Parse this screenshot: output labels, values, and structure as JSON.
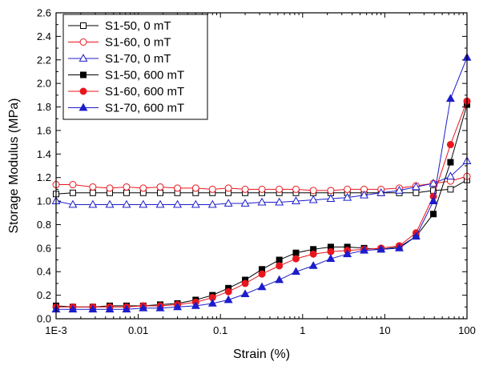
{
  "chart_data": {
    "type": "line",
    "xlabel": "Strain (%)",
    "ylabel": "Storage Modulus (MPa)",
    "xscale": "log",
    "xlim": [
      0.001,
      100
    ],
    "ylim": [
      0,
      2.6
    ],
    "x_ticks": [
      {
        "value": 0.001,
        "label": "1E-3"
      },
      {
        "value": 0.01,
        "label": "0.01"
      },
      {
        "value": 0.1,
        "label": "0.1"
      },
      {
        "value": 1,
        "label": "1"
      },
      {
        "value": 10,
        "label": "10"
      },
      {
        "value": 100,
        "label": "100"
      }
    ],
    "y_ticks": [
      "0.0",
      "0.2",
      "0.4",
      "0.6",
      "0.8",
      "1.0",
      "1.2",
      "1.4",
      "1.6",
      "1.8",
      "2.0",
      "2.2",
      "2.4",
      "2.6"
    ],
    "grid": false,
    "legend_position": "top-left",
    "x": [
      0.001,
      0.0016,
      0.0028,
      0.0045,
      0.0072,
      0.0115,
      0.0185,
      0.03,
      0.05,
      0.08,
      0.125,
      0.2,
      0.32,
      0.52,
      0.83,
      1.35,
      2.2,
      3.5,
      5.6,
      9,
      15,
      24,
      39,
      63,
      100
    ],
    "series": [
      {
        "name": "S1-50, 0 mT",
        "color": "#000000",
        "marker": "square",
        "filled": false,
        "values": [
          1.06,
          1.07,
          1.07,
          1.07,
          1.07,
          1.07,
          1.07,
          1.07,
          1.07,
          1.07,
          1.07,
          1.07,
          1.07,
          1.07,
          1.07,
          1.07,
          1.07,
          1.07,
          1.07,
          1.07,
          1.07,
          1.07,
          1.09,
          1.1,
          1.18
        ]
      },
      {
        "name": "S1-60, 0 mT",
        "color": "#e8161c",
        "marker": "circle",
        "filled": false,
        "values": [
          1.14,
          1.14,
          1.12,
          1.11,
          1.12,
          1.11,
          1.12,
          1.11,
          1.11,
          1.1,
          1.11,
          1.1,
          1.1,
          1.1,
          1.1,
          1.09,
          1.09,
          1.1,
          1.1,
          1.1,
          1.11,
          1.13,
          1.15,
          1.17,
          1.21
        ]
      },
      {
        "name": "S1-70, 0 mT",
        "color": "#1c1ccc",
        "marker": "triangle",
        "filled": false,
        "values": [
          1.0,
          0.97,
          0.97,
          0.97,
          0.97,
          0.97,
          0.97,
          0.97,
          0.97,
          0.97,
          0.98,
          0.98,
          0.99,
          0.99,
          1.0,
          1.01,
          1.02,
          1.03,
          1.05,
          1.07,
          1.09,
          1.12,
          1.15,
          1.21,
          1.34
        ]
      },
      {
        "name": "S1-50, 600 mT",
        "color": "#000000",
        "marker": "square",
        "filled": true,
        "values": [
          0.11,
          0.1,
          0.1,
          0.11,
          0.11,
          0.11,
          0.12,
          0.13,
          0.16,
          0.2,
          0.26,
          0.33,
          0.42,
          0.5,
          0.56,
          0.59,
          0.61,
          0.61,
          0.6,
          0.59,
          0.61,
          0.7,
          0.89,
          1.33,
          1.82
        ]
      },
      {
        "name": "S1-60, 600 mT",
        "color": "#e8161c",
        "marker": "circle",
        "filled": true,
        "values": [
          0.1,
          0.1,
          0.1,
          0.1,
          0.1,
          0.11,
          0.11,
          0.12,
          0.14,
          0.18,
          0.23,
          0.3,
          0.38,
          0.45,
          0.51,
          0.55,
          0.57,
          0.58,
          0.59,
          0.6,
          0.62,
          0.73,
          1.04,
          1.48,
          1.85
        ]
      },
      {
        "name": "S1-70, 600 mT",
        "color": "#1c1ccc",
        "marker": "triangle",
        "filled": true,
        "values": [
          0.08,
          0.08,
          0.08,
          0.08,
          0.08,
          0.09,
          0.09,
          0.1,
          0.11,
          0.13,
          0.16,
          0.21,
          0.27,
          0.33,
          0.4,
          0.45,
          0.51,
          0.55,
          0.58,
          0.59,
          0.6,
          0.7,
          1.0,
          1.87,
          2.22
        ]
      }
    ]
  }
}
